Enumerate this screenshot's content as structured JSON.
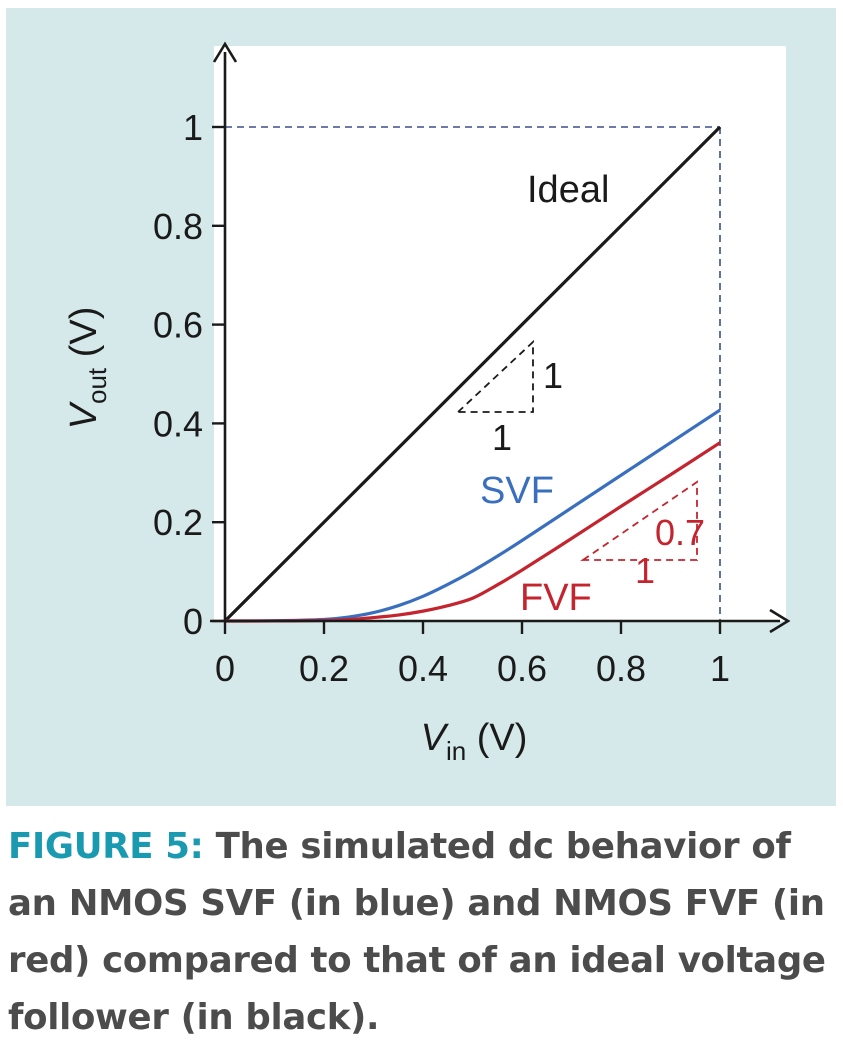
{
  "chart_data": {
    "type": "line",
    "xlabel": {
      "var": "V",
      "sub": "in",
      "unit": " (V)"
    },
    "ylabel": {
      "var": "V",
      "sub": "out",
      "unit": " (V)"
    },
    "xlim": [
      0,
      1
    ],
    "ylim": [
      0,
      1
    ],
    "xticks": [
      0,
      0.2,
      0.4,
      0.6,
      0.8,
      1
    ],
    "yticks": [
      0,
      0.2,
      0.4,
      0.6,
      0.8,
      1
    ],
    "xtick_labels": [
      "0",
      "0.2",
      "0.4",
      "0.6",
      "0.8",
      "1"
    ],
    "ytick_labels": [
      "0",
      "0.2",
      "0.4",
      "0.6",
      "0.8",
      "1"
    ],
    "grid": false,
    "series": [
      {
        "name": "Ideal",
        "color": "#1a1a1a",
        "x": [
          0,
          1
        ],
        "y": [
          0,
          1
        ]
      },
      {
        "name": "SVF",
        "color": "#3a6fbf",
        "x": [
          0,
          0.1,
          0.2,
          0.25,
          0.3,
          0.35,
          0.4,
          0.45,
          0.5,
          0.55,
          0.6,
          0.7,
          0.8,
          0.9,
          1.0
        ],
        "y": [
          0,
          0.0005,
          0.003,
          0.008,
          0.017,
          0.031,
          0.05,
          0.074,
          0.101,
          0.131,
          0.163,
          0.229,
          0.295,
          0.361,
          0.427
        ]
      },
      {
        "name": "FVF",
        "color": "#c4242d",
        "x": [
          0,
          0.1,
          0.2,
          0.25,
          0.3,
          0.35,
          0.4,
          0.45,
          0.5,
          0.55,
          0.6,
          0.7,
          0.8,
          0.9,
          1.0
        ],
        "y": [
          0,
          0.0001,
          0.001,
          0.003,
          0.007,
          0.012,
          0.02,
          0.031,
          0.046,
          0.073,
          0.103,
          0.167,
          0.232,
          0.296,
          0.361
        ]
      }
    ],
    "annotations": {
      "ideal_label": "Ideal",
      "svf_label": "SVF",
      "fvf_label": "FVF",
      "ideal_slope": {
        "run": "1",
        "rise": "1"
      },
      "fvf_slope": {
        "run": "1",
        "rise": "0.7"
      }
    }
  },
  "caption": {
    "lead": "FIGURE 5:",
    "text": " The simulated dc behavior of an NMOS SVF (in blue) and NMOS FVF (in red) compared to that of an ideal voltage follower (in black)."
  }
}
